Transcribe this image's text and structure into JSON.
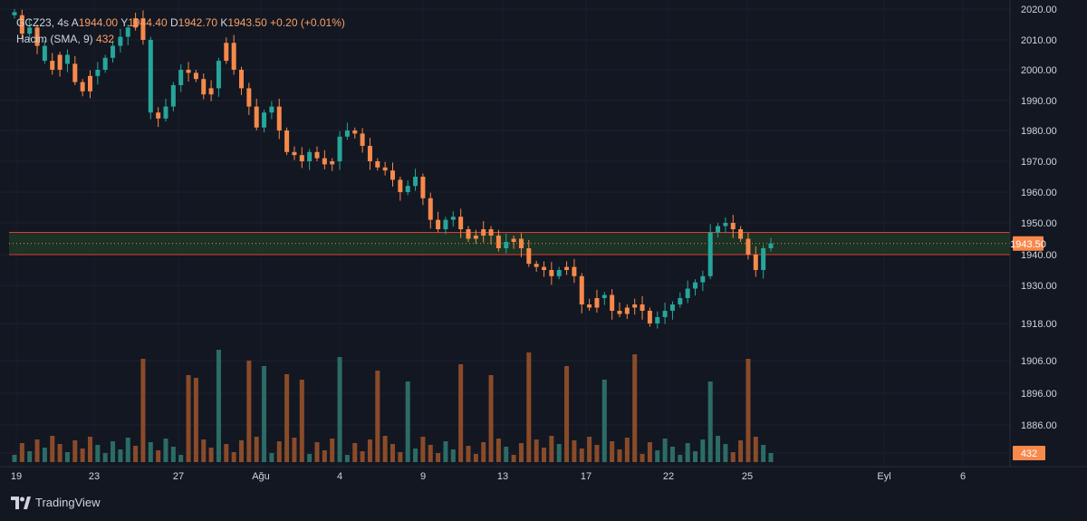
{
  "header": {
    "symbol": "GCZ23, 4s",
    "o_label": "A",
    "o_val": "1944.00",
    "h_label": "Y",
    "h_val": "1944.40",
    "l_label": "D",
    "l_val": "1942.70",
    "c_label": "K",
    "c_val": "1943.50",
    "change": "+0.20 (+0.01%)",
    "volume_label": "Hacim (SMA, 9)",
    "volume_value": "432"
  },
  "branding": {
    "name": "TradingView"
  },
  "colors": {
    "up": "#26a69a",
    "down": "#f7894a",
    "background": "#131722",
    "zone_fill": "#1e3a26",
    "zone_border": "#e53935",
    "price_tag": "#f7894a",
    "volume_up": "#2c6c66",
    "volume_down": "#8a4b29"
  },
  "chart_data": {
    "type": "candlestick",
    "symbol": "GCZ23",
    "timeframe": "4s",
    "y_tick_labels": [
      "2020.00",
      "2010.00",
      "2000.00",
      "1990.00",
      "1980.00",
      "1970.00",
      "1960.00",
      "1950.00",
      "1940.00",
      "1930.00",
      "1918.00",
      "1906.00",
      "1896.00",
      "1886.00",
      ".00"
    ],
    "x_tick_labels": [
      "19",
      "23",
      "27",
      "Ağu",
      "4",
      "9",
      "13",
      "17",
      "22",
      "25",
      "Eyl",
      "6"
    ],
    "last_price": "1943.50",
    "last_volume": "432",
    "zone": {
      "top": 1947,
      "bottom": 1940
    },
    "price_path": [
      2018,
      2012,
      2014,
      2008,
      2003,
      2000,
      2005,
      2002,
      1996,
      1993,
      1998,
      2000,
      2004,
      2008,
      2011,
      2014,
      2017,
      2010,
      1986,
      1984,
      1988,
      1995,
      2000,
      1999,
      1997,
      1992,
      1994,
      2003,
      2009,
      2000,
      1994,
      1988,
      1981,
      1986,
      1988,
      1980,
      1973,
      1972,
      1970,
      1973,
      1971,
      1969,
      1970,
      1978,
      1980,
      1979,
      1975,
      1970,
      1968,
      1967,
      1964,
      1960,
      1962,
      1965,
      1958,
      1951,
      1948,
      1951,
      1952,
      1948,
      1945,
      1946,
      1948,
      1946,
      1942,
      1944,
      1945,
      1942,
      1937,
      1936,
      1935,
      1933,
      1935,
      1936,
      1933,
      1924,
      1923,
      1926,
      1927,
      1922,
      1921,
      1923,
      1924,
      1922,
      1918,
      1920,
      1922,
      1924,
      1926,
      1929,
      1931,
      1933,
      1947,
      1949,
      1950,
      1948,
      1945,
      1940,
      1935,
      1942,
      1943.5
    ],
    "up_bars": [
      0,
      2,
      4,
      7,
      11,
      12,
      13,
      14,
      15,
      18,
      20,
      21,
      22,
      27,
      33,
      34,
      39,
      43,
      44,
      52,
      53,
      57,
      58,
      65,
      72,
      78,
      85,
      86,
      87,
      88,
      89,
      90,
      91,
      92,
      93,
      94,
      99,
      100
    ],
    "big_volume_bars": [
      17,
      23,
      24,
      27,
      31,
      33,
      36,
      38,
      43,
      48,
      52,
      59,
      63,
      68,
      73,
      78,
      82,
      92,
      97
    ]
  }
}
